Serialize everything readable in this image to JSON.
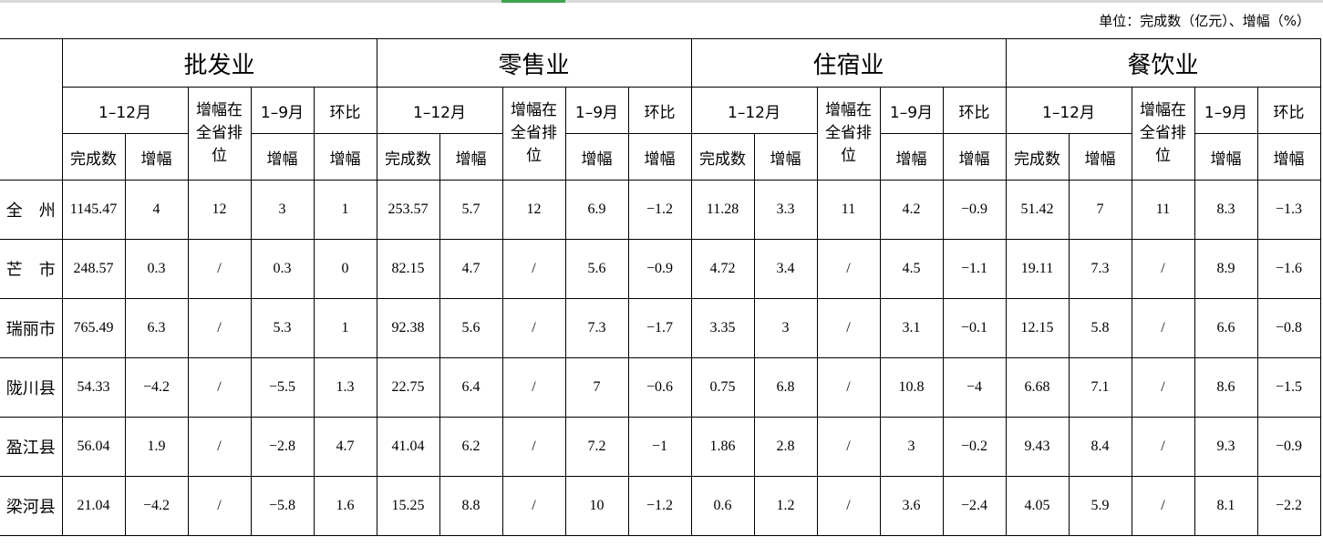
{
  "unit_note": "单位：完成数（亿元）、增幅（%）",
  "sections": [
    "批发业",
    "零售业",
    "住宿业",
    "餐饮业"
  ],
  "subheaders": {
    "period_full": "1–12月",
    "rank": "增幅在全省排位",
    "period_partial": "1–9月",
    "mom": "环比",
    "completed": "完成数",
    "growth": "增幅"
  },
  "rows": [
    {
      "name": "全　州",
      "values": [
        "1145.47",
        "4",
        "12",
        "3",
        "1",
        "253.57",
        "5.7",
        "12",
        "6.9",
        "−1.2",
        "11.28",
        "3.3",
        "11",
        "4.2",
        "−0.9",
        "51.42",
        "7",
        "11",
        "8.3",
        "−1.3"
      ]
    },
    {
      "name": "芒　市",
      "values": [
        "248.57",
        "0.3",
        "/",
        "0.3",
        "0",
        "82.15",
        "4.7",
        "/",
        "5.6",
        "−0.9",
        "4.72",
        "3.4",
        "/",
        "4.5",
        "−1.1",
        "19.11",
        "7.3",
        "/",
        "8.9",
        "−1.6"
      ]
    },
    {
      "name": "瑞丽市",
      "values": [
        "765.49",
        "6.3",
        "/",
        "5.3",
        "1",
        "92.38",
        "5.6",
        "/",
        "7.3",
        "−1.7",
        "3.35",
        "3",
        "/",
        "3.1",
        "−0.1",
        "12.15",
        "5.8",
        "/",
        "6.6",
        "−0.8"
      ]
    },
    {
      "name": "陇川县",
      "values": [
        "54.33",
        "−4.2",
        "/",
        "−5.5",
        "1.3",
        "22.75",
        "6.4",
        "/",
        "7",
        "−0.6",
        "0.75",
        "6.8",
        "/",
        "10.8",
        "−4",
        "6.68",
        "7.1",
        "/",
        "8.6",
        "−1.5"
      ]
    },
    {
      "name": "盈江县",
      "values": [
        "56.04",
        "1.9",
        "/",
        "−2.8",
        "4.7",
        "41.04",
        "6.2",
        "/",
        "7.2",
        "−1",
        "1.86",
        "2.8",
        "/",
        "3",
        "−0.2",
        "9.43",
        "8.4",
        "/",
        "9.3",
        "−0.9"
      ]
    },
    {
      "name": "梁河县",
      "values": [
        "21.04",
        "−4.2",
        "/",
        "−5.8",
        "1.6",
        "15.25",
        "8.8",
        "/",
        "10",
        "−1.2",
        "0.6",
        "1.2",
        "/",
        "3.6",
        "−2.4",
        "4.05",
        "5.9",
        "/",
        "8.1",
        "−2.2"
      ]
    }
  ]
}
